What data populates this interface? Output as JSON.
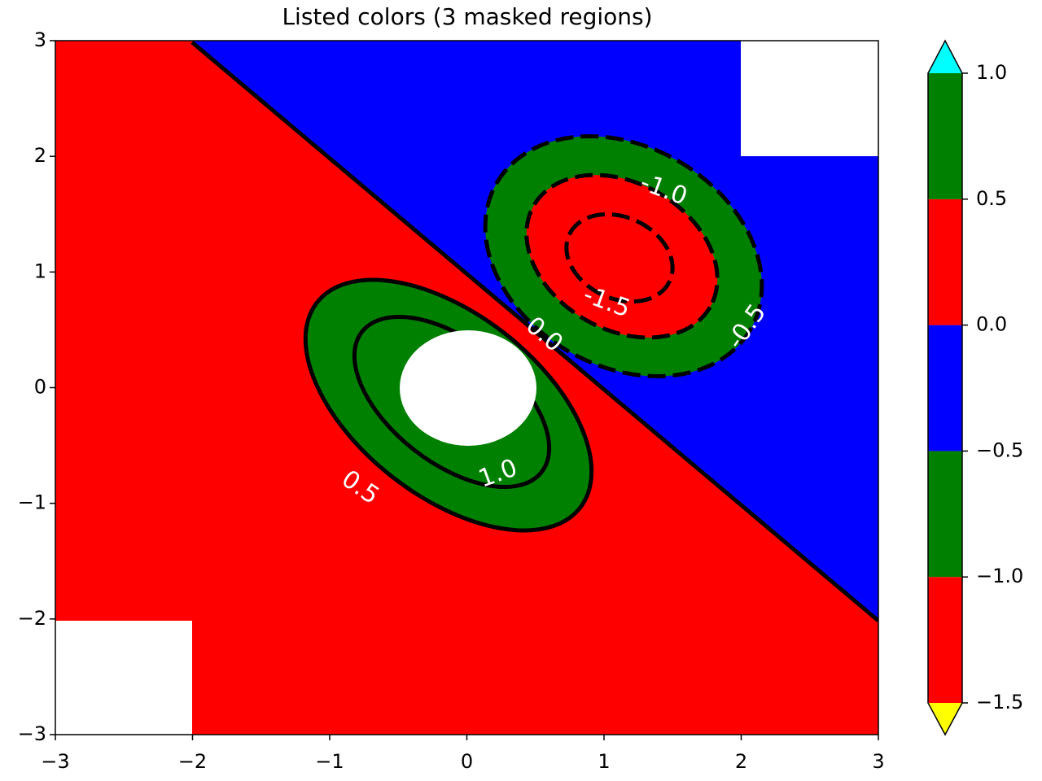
{
  "chart_data": {
    "type": "contour",
    "title": "Listed colors (3 masked regions)",
    "xlim": [
      -3,
      3
    ],
    "ylim": [
      -3,
      3
    ],
    "xticks": [
      {
        "value": -3,
        "label": "−3"
      },
      {
        "value": -2,
        "label": "−2"
      },
      {
        "value": -1,
        "label": "−1"
      },
      0,
      1,
      2,
      3
    ],
    "yticks": [
      {
        "value": -3,
        "label": "−3"
      },
      {
        "value": -2,
        "label": "−2"
      },
      {
        "value": -1,
        "label": "−1"
      },
      0,
      1,
      2,
      3
    ],
    "contour_labels": [
      {
        "value": -1.0,
        "label": "-1.0"
      },
      {
        "value": -1.5,
        "label": "-1.5"
      },
      {
        "value": -0.5,
        "label": "-0.5"
      },
      {
        "value": 0.0,
        "label": "0.0"
      },
      {
        "value": 0.5,
        "label": "0.5"
      },
      {
        "value": 1.0,
        "label": "1.0"
      }
    ],
    "colorbar": {
      "levels": [
        -1.5,
        -1.0,
        -0.5,
        0.0,
        0.5,
        1.0
      ],
      "colors": [
        "#ff0000",
        "#008000",
        "#0000ff",
        "#ff0000",
        "#008000"
      ],
      "over_color": "#00ffff",
      "under_color": "#ffff00",
      "ticks": [
        {
          "value": -1.5,
          "label": "−1.5"
        },
        {
          "value": -1.0,
          "label": "−1.0"
        },
        {
          "value": -0.5,
          "label": "−0.5"
        },
        {
          "value": 0.0,
          "label": "0.0"
        },
        0.5,
        {
          "value": 1.0,
          "label": "1.0"
        }
      ]
    }
  }
}
